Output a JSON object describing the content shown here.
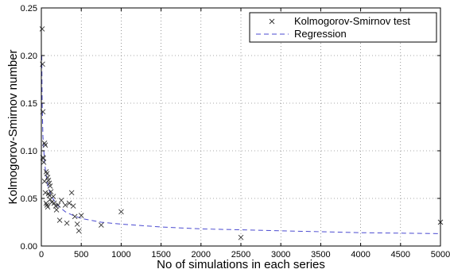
{
  "chart_data": {
    "type": "scatter",
    "xlabel": "No of simulations in each series",
    "ylabel": "Kolmogorov-Smirnov number",
    "xlim": [
      0,
      5000
    ],
    "ylim": [
      0,
      0.25
    ],
    "xticks": [
      0,
      500,
      1000,
      1500,
      2000,
      2500,
      3000,
      3500,
      4000,
      4500,
      5000
    ],
    "yticks": [
      0,
      0.05,
      0.1,
      0.15,
      0.2,
      0.25
    ],
    "xtick_labels": [
      "0",
      "500",
      "1000",
      "1500",
      "2000",
      "2500",
      "3000",
      "3500",
      "4000",
      "4500",
      "5000"
    ],
    "ytick_labels": [
      "0.00",
      "0.05",
      "0.10",
      "0.15",
      "0.20",
      "0.25"
    ],
    "grid": true,
    "grid_style": "dotted",
    "legend_position": "top-right",
    "series": [
      {
        "name": "Kolmogorov-Smirnov test",
        "kind": "scatter",
        "marker": "x",
        "color": "#333333",
        "points": [
          [
            10,
            0.228
          ],
          [
            15,
            0.191
          ],
          [
            20,
            0.141
          ],
          [
            20,
            0.093
          ],
          [
            25,
            0.092
          ],
          [
            30,
            0.088
          ],
          [
            40,
            0.108
          ],
          [
            50,
            0.106
          ],
          [
            60,
            0.078
          ],
          [
            70,
            0.076
          ],
          [
            80,
            0.072
          ],
          [
            90,
            0.069
          ],
          [
            100,
            0.066
          ],
          [
            110,
            0.063
          ],
          [
            120,
            0.057
          ],
          [
            40,
            0.068
          ],
          [
            50,
            0.056
          ],
          [
            60,
            0.045
          ],
          [
            70,
            0.043
          ],
          [
            80,
            0.041
          ],
          [
            90,
            0.055
          ],
          [
            100,
            0.053
          ],
          [
            110,
            0.049
          ],
          [
            130,
            0.046
          ],
          [
            150,
            0.052
          ],
          [
            160,
            0.045
          ],
          [
            180,
            0.042
          ],
          [
            190,
            0.038
          ],
          [
            210,
            0.043
          ],
          [
            230,
            0.027
          ],
          [
            250,
            0.048
          ],
          [
            300,
            0.043
          ],
          [
            320,
            0.024
          ],
          [
            350,
            0.045
          ],
          [
            380,
            0.056
          ],
          [
            400,
            0.042
          ],
          [
            420,
            0.031
          ],
          [
            450,
            0.023
          ],
          [
            470,
            0.016
          ],
          [
            500,
            0.032
          ],
          [
            750,
            0.022
          ],
          [
            1000,
            0.036
          ],
          [
            2500,
            0.009
          ],
          [
            5000,
            0.025
          ]
        ]
      },
      {
        "name": "Regression",
        "kind": "line",
        "dash": true,
        "color": "#4a4ad0",
        "points": [
          [
            5,
            0.2
          ],
          [
            10,
            0.15
          ],
          [
            20,
            0.115
          ],
          [
            40,
            0.088
          ],
          [
            70,
            0.068
          ],
          [
            100,
            0.058
          ],
          [
            150,
            0.049
          ],
          [
            200,
            0.043
          ],
          [
            300,
            0.036
          ],
          [
            400,
            0.032
          ],
          [
            500,
            0.029
          ],
          [
            750,
            0.025
          ],
          [
            1000,
            0.023
          ],
          [
            1500,
            0.02
          ],
          [
            2000,
            0.018
          ],
          [
            2500,
            0.017
          ],
          [
            3000,
            0.016
          ],
          [
            3500,
            0.015
          ],
          [
            4000,
            0.014
          ],
          [
            4500,
            0.0135
          ],
          [
            5000,
            0.013
          ]
        ]
      }
    ]
  }
}
